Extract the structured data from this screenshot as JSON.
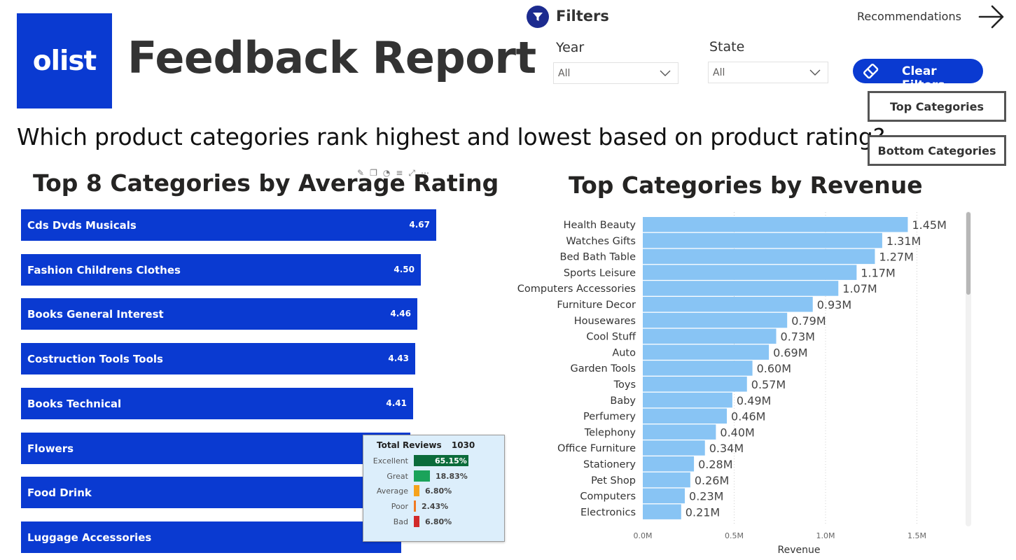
{
  "header": {
    "logo_text": "olist",
    "title": "Feedback Report",
    "question": "Which product categories rank highest and lowest based on product rating?"
  },
  "filters": {
    "label": "Filters",
    "year": {
      "label": "Year",
      "value": "All"
    },
    "state": {
      "label": "State",
      "value": "All"
    },
    "clear_label": "Clear Filters"
  },
  "nav": {
    "recommendations_label": "Recommendations",
    "top_categories_label": "Top Categories",
    "bottom_categories_label": "Bottom Categories"
  },
  "colors": {
    "brand": "#0a3ad1",
    "revenue_bar": "#88c4f4",
    "excellent": "#0b6b3a",
    "great": "#1aa35a",
    "average": "#f5a21b",
    "poor": "#f07a22",
    "bad": "#d12a2a"
  },
  "chart_data": [
    {
      "type": "bar",
      "orientation": "horizontal",
      "title": "Top 8 Categories by Average Rating",
      "categories": [
        "Cds Dvds Musicals",
        "Fashion Childrens Clothes",
        "Books General Interest",
        "Costruction Tools Tools",
        "Books Technical",
        "Flowers",
        "Food Drink",
        "Luggage Accessories"
      ],
      "values": [
        4.67,
        4.5,
        4.46,
        4.43,
        4.41,
        4.41,
        4.4,
        4.37
      ],
      "data_labels": [
        "4.67",
        "4.50",
        "4.46",
        "4.43",
        "4.41",
        "",
        "",
        ""
      ],
      "tooltip": {
        "header_label": "Total Reviews",
        "header_value": "1030",
        "rows": [
          {
            "label": "Excellent",
            "value": 65.15,
            "text": "65.15%",
            "color": "#0b6b3a"
          },
          {
            "label": "Great",
            "value": 18.83,
            "text": "18.83%",
            "color": "#1aa35a"
          },
          {
            "label": "Average",
            "value": 6.8,
            "text": "6.80%",
            "color": "#f5a21b"
          },
          {
            "label": "Poor",
            "value": 2.43,
            "text": "2.43%",
            "color": "#f07a22"
          },
          {
            "label": "Bad",
            "value": 6.8,
            "text": "6.80%",
            "color": "#d12a2a"
          }
        ]
      }
    },
    {
      "type": "bar",
      "orientation": "horizontal",
      "title": "Top Categories by Revenue",
      "xlabel": "Revenue",
      "xlim": [
        0,
        1.5
      ],
      "xticks": [
        "0.0M",
        "0.5M",
        "1.0M",
        "1.5M"
      ],
      "xtick_values": [
        0,
        0.5,
        1.0,
        1.5
      ],
      "grid": true,
      "categories": [
        "Health Beauty",
        "Watches Gifts",
        "Bed Bath Table",
        "Sports Leisure",
        "Computers Accessories",
        "Furniture Decor",
        "Housewares",
        "Cool Stuff",
        "Auto",
        "Garden Tools",
        "Toys",
        "Baby",
        "Perfumery",
        "Telephony",
        "Office Furniture",
        "Stationery",
        "Pet Shop",
        "Computers",
        "Electronics"
      ],
      "values": [
        1.45,
        1.31,
        1.27,
        1.17,
        1.07,
        0.93,
        0.79,
        0.73,
        0.69,
        0.6,
        0.57,
        0.49,
        0.46,
        0.4,
        0.34,
        0.28,
        0.26,
        0.23,
        0.21
      ],
      "data_labels": [
        "1.45M",
        "1.31M",
        "1.27M",
        "1.17M",
        "1.07M",
        "0.93M",
        "0.79M",
        "0.73M",
        "0.69M",
        "0.60M",
        "0.57M",
        "0.49M",
        "0.46M",
        "0.40M",
        "0.34M",
        "0.28M",
        "0.26M",
        "0.23M",
        "0.21M"
      ]
    }
  ]
}
